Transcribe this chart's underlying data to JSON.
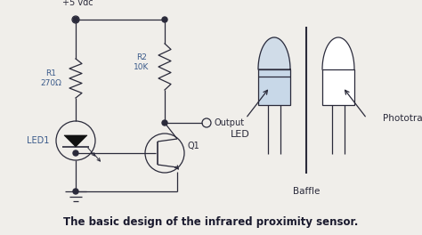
{
  "title": "The basic design of the infrared proximity sensor.",
  "title_fontsize": 8.5,
  "title_bold": true,
  "bg_color": "#f0eeea",
  "line_color": "#2a2a3a",
  "label_color": "#3a5a8a",
  "text_color": "#2a2a3a",
  "vcc_label": "+5 vdc",
  "r1_label": "R1\n270Ω",
  "r2_label": "R2\n10K",
  "led_label": "LED1",
  "q1_label": "Q1",
  "output_label": "Output",
  "led_diagram_label": "LED",
  "phototransistor_label": "Phototransistor",
  "baffle_label": "Baffle",
  "led_fill_color": "#c8d8e8",
  "led_body_color": "#d0dce8"
}
